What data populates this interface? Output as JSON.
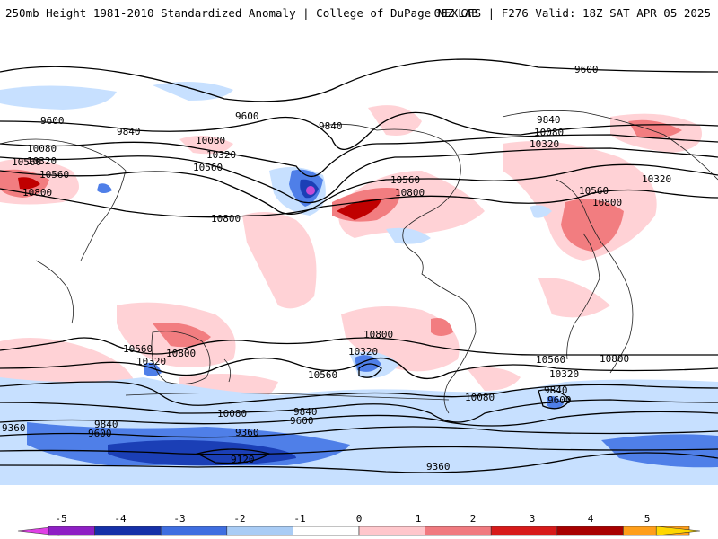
{
  "title": {
    "left": "250mb Height 1981-2010 Standardized Anomaly | College of DuPage NEXLAB",
    "right": "06Z GFS | F276 Valid: 18Z SAT APR 05 2025"
  },
  "map": {
    "contour_labels": [
      "9600",
      "9600",
      "9840",
      "9600",
      "9840",
      "10080",
      "10080",
      "10320",
      "10320",
      "9840",
      "10080",
      "10320",
      "10560",
      "10560",
      "10800",
      "10560",
      "10800",
      "10800",
      "10560",
      "10320",
      "10800",
      "10560",
      "10320",
      "10800",
      "10560",
      "10800",
      "10800",
      "10560",
      "10320",
      "10080",
      "10320",
      "10560",
      "9840",
      "9600",
      "10080",
      "9840",
      "9600",
      "9360",
      "9840",
      "9600",
      "9360",
      "9120",
      "9360"
    ],
    "colors": {
      "neg_strong": "#1b3fb6",
      "neg_mid": "#4f7fe8",
      "neg_light": "#c7e0ff",
      "pos_light": "#ffd2d6",
      "pos_mid": "#f27d80",
      "pos_strong": "#c00000",
      "magenta": "#c24bd6"
    }
  },
  "colorbar": {
    "ticks": [
      "-5",
      "-4",
      "-3",
      "-2",
      "-1",
      "0",
      "1",
      "2",
      "3",
      "4",
      "5"
    ],
    "colors": [
      "#e03fe6",
      "#8e1fc4",
      "#1530a8",
      "#3f6ee0",
      "#a9ccf5",
      "#ffffff",
      "#ffc7cc",
      "#f07a80",
      "#d71a1a",
      "#a80000",
      "#ff9e1a",
      "#ffd700"
    ]
  }
}
